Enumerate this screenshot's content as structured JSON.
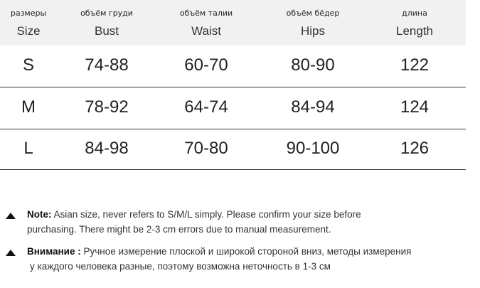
{
  "table": {
    "header": [
      {
        "ru": "размеры",
        "en": "Size"
      },
      {
        "ru": "объём груди",
        "en": "Bust"
      },
      {
        "ru": "объём талии",
        "en": "Waist"
      },
      {
        "ru": "объём бёдер",
        "en": "Hips"
      },
      {
        "ru": "длина",
        "en": "Length"
      }
    ],
    "rows": [
      [
        "S",
        "74-88",
        "60-70",
        "80-90",
        "122"
      ],
      [
        "M",
        "78-92",
        "64-74",
        "84-94",
        "124"
      ],
      [
        "L",
        "84-98",
        "70-80",
        "90-100",
        "126"
      ]
    ]
  },
  "notes": [
    {
      "label": "Note:",
      "lines": [
        "Asian size, never refers to S/M/L simply. Please confirm your size before",
        "purchasing. There might be 2-3 cm errors due to manual measurement."
      ]
    },
    {
      "label": "Внимание :",
      "lines": [
        "Ручное измерение плоской и широкой стороной вниз, методы измерения",
        "у каждого человека разные, поэтому возможна неточность в 1-3 см"
      ]
    }
  ]
}
